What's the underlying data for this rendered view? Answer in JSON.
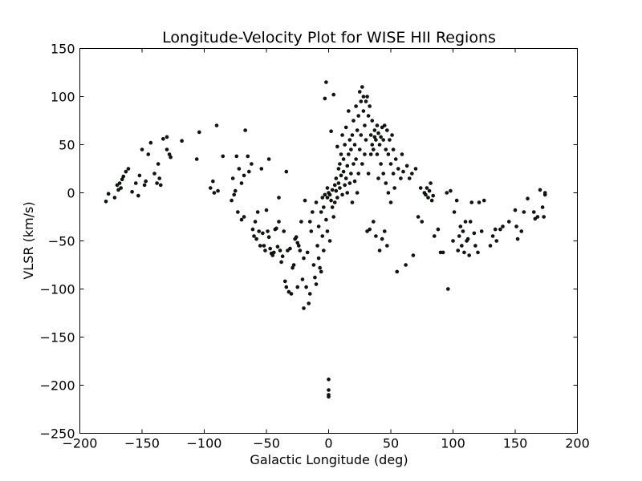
{
  "chart_data": {
    "type": "scatter",
    "title": "Longitude-Velocity Plot for WISE HII Regions",
    "xlabel": "Galactic Longitude (deg)",
    "ylabel": "VLSR (km/s)",
    "xlim": [
      -200,
      200
    ],
    "ylim": [
      -250,
      150
    ],
    "xticks": [
      -200,
      -150,
      -100,
      -50,
      0,
      50,
      100,
      150,
      200
    ],
    "yticks": [
      -250,
      -200,
      -150,
      -100,
      -50,
      0,
      50,
      100,
      150
    ],
    "xtick_labels": [
      "−200",
      "−150",
      "−100",
      "−50",
      "0",
      "50",
      "100",
      "150",
      "200"
    ],
    "ytick_labels": [
      "−250",
      "−200",
      "−150",
      "−100",
      "−50",
      "0",
      "50",
      "100",
      "150"
    ],
    "grid": false,
    "legend": "none",
    "marker_color": "#0f1a0f",
    "series": [
      {
        "points": [
          [
            -179,
            -9
          ],
          [
            -177,
            -1
          ],
          [
            -172,
            -5
          ],
          [
            -170,
            8
          ],
          [
            -169,
            3
          ],
          [
            -168,
            10
          ],
          [
            -167,
            5
          ],
          [
            -166,
            14
          ],
          [
            -165,
            17
          ],
          [
            -163,
            22
          ],
          [
            -161,
            25
          ],
          [
            -158,
            1
          ],
          [
            -155,
            10
          ],
          [
            -153,
            -3
          ],
          [
            -152,
            18
          ],
          [
            -150,
            45
          ],
          [
            -148,
            8
          ],
          [
            -147,
            12
          ],
          [
            -145,
            40
          ],
          [
            -143,
            52
          ],
          [
            -140,
            20
          ],
          [
            -138,
            10
          ],
          [
            -137,
            30
          ],
          [
            -136,
            15
          ],
          [
            -135,
            8
          ],
          [
            -133,
            56
          ],
          [
            -130,
            58
          ],
          [
            -130,
            45
          ],
          [
            -128,
            40
          ],
          [
            -127,
            37
          ],
          [
            -118,
            54
          ],
          [
            -106,
            35
          ],
          [
            -104,
            63
          ],
          [
            -95,
            5
          ],
          [
            -93,
            12
          ],
          [
            -92,
            0
          ],
          [
            -90,
            70
          ],
          [
            -89,
            2
          ],
          [
            -85,
            38
          ],
          [
            -78,
            -8
          ],
          [
            -77,
            15
          ],
          [
            -76,
            -2
          ],
          [
            -75,
            2
          ],
          [
            -74,
            38
          ],
          [
            -73,
            -20
          ],
          [
            -72,
            25
          ],
          [
            -70,
            -28
          ],
          [
            -70,
            10
          ],
          [
            -68,
            18
          ],
          [
            -68,
            -25
          ],
          [
            -67,
            65
          ],
          [
            -65,
            38
          ],
          [
            -64,
            22
          ],
          [
            -62,
            30
          ],
          [
            -61,
            -38
          ],
          [
            -60,
            -45
          ],
          [
            -59,
            -30
          ],
          [
            -58,
            -48
          ],
          [
            -57,
            -20
          ],
          [
            -56,
            -40
          ],
          [
            -55,
            -55
          ],
          [
            -54,
            25
          ],
          [
            -53,
            -42
          ],
          [
            -52,
            -55
          ],
          [
            -51,
            -60
          ],
          [
            -50,
            -18
          ],
          [
            -49,
            -40
          ],
          [
            -48,
            -46
          ],
          [
            -48,
            35
          ],
          [
            -47,
            -58
          ],
          [
            -46,
            -63
          ],
          [
            -45,
            -65
          ],
          [
            -44,
            -62
          ],
          [
            -43,
            -38
          ],
          [
            -42,
            -37
          ],
          [
            -41,
            -56
          ],
          [
            -40,
            -5
          ],
          [
            -40,
            -30
          ],
          [
            -39,
            -60
          ],
          [
            -38,
            -72
          ],
          [
            -37,
            -66
          ],
          [
            -36,
            -40
          ],
          [
            -35,
            -92
          ],
          [
            -34,
            -98
          ],
          [
            -34,
            22
          ],
          [
            -33,
            -60
          ],
          [
            -32,
            -103
          ],
          [
            -31,
            -58
          ],
          [
            -30,
            -105
          ],
          [
            -29,
            -78
          ],
          [
            -28,
            -75
          ],
          [
            -27,
            -48
          ],
          [
            -26,
            -46
          ],
          [
            -25,
            -52
          ],
          [
            -25,
            -98
          ],
          [
            -24,
            -55
          ],
          [
            -23,
            -60
          ],
          [
            -22,
            -30
          ],
          [
            -21,
            -90
          ],
          [
            -20,
            -68
          ],
          [
            -20,
            -120
          ],
          [
            -19,
            -8
          ],
          [
            -18,
            -98
          ],
          [
            -17,
            -62
          ],
          [
            -16,
            -115
          ],
          [
            -15,
            -30
          ],
          [
            -15,
            -105
          ],
          [
            -14,
            -40
          ],
          [
            -13,
            -20
          ],
          [
            -12,
            -75
          ],
          [
            -11,
            -88
          ],
          [
            -10,
            -95
          ],
          [
            -10,
            -10
          ],
          [
            -9,
            -55
          ],
          [
            -8,
            -68
          ],
          [
            -8,
            -35
          ],
          [
            -7,
            -78
          ],
          [
            -6,
            -82
          ],
          [
            -6,
            -20
          ],
          [
            -5,
            -5
          ],
          [
            -5,
            -45
          ],
          [
            -4,
            -15
          ],
          [
            -4,
            -60
          ],
          [
            -3,
            -2
          ],
          [
            -3,
            98
          ],
          [
            -2,
            -28
          ],
          [
            -2,
            115
          ],
          [
            -1,
            -5
          ],
          [
            -1,
            5
          ],
          [
            -1,
            -40
          ],
          [
            0,
            0
          ],
          [
            0,
            -210
          ],
          [
            0,
            -205
          ],
          [
            0,
            -212
          ],
          [
            0,
            -194
          ],
          [
            1,
            -2
          ],
          [
            1,
            -50
          ],
          [
            2,
            -8
          ],
          [
            2,
            64
          ],
          [
            3,
            3
          ],
          [
            3,
            -15
          ],
          [
            4,
            102
          ],
          [
            4,
            -25
          ],
          [
            5,
            8
          ],
          [
            5,
            -10
          ],
          [
            6,
            15
          ],
          [
            6,
            2
          ],
          [
            7,
            -5
          ],
          [
            7,
            48
          ],
          [
            8,
            25
          ],
          [
            8,
            10
          ],
          [
            9,
            30
          ],
          [
            9,
            5
          ],
          [
            10,
            18
          ],
          [
            10,
            40
          ],
          [
            11,
            60
          ],
          [
            11,
            -2
          ],
          [
            12,
            22
          ],
          [
            12,
            35
          ],
          [
            13,
            8
          ],
          [
            13,
            50
          ],
          [
            14,
            15
          ],
          [
            14,
            68
          ],
          [
            15,
            28
          ],
          [
            15,
            0
          ],
          [
            16,
            40
          ],
          [
            16,
            85
          ],
          [
            17,
            10
          ],
          [
            17,
            55
          ],
          [
            18,
            20
          ],
          [
            18,
            45
          ],
          [
            19,
            -10
          ],
          [
            19,
            60
          ],
          [
            20,
            30
          ],
          [
            20,
            75
          ],
          [
            21,
            12
          ],
          [
            21,
            50
          ],
          [
            22,
            90
          ],
          [
            22,
            35
          ],
          [
            23,
            65
          ],
          [
            23,
            0
          ],
          [
            24,
            80
          ],
          [
            24,
            20
          ],
          [
            25,
            105
          ],
          [
            25,
            45
          ],
          [
            26,
            95
          ],
          [
            26,
            60
          ],
          [
            27,
            110
          ],
          [
            27,
            30
          ],
          [
            28,
            85
          ],
          [
            28,
            100
          ],
          [
            29,
            70
          ],
          [
            29,
            40
          ],
          [
            30,
            95
          ],
          [
            30,
            55
          ],
          [
            31,
            100
          ],
          [
            31,
            -40
          ],
          [
            32,
            80
          ],
          [
            32,
            20
          ],
          [
            33,
            90
          ],
          [
            33,
            -38
          ],
          [
            34,
            60
          ],
          [
            34,
            40
          ],
          [
            35,
            75
          ],
          [
            35,
            50
          ],
          [
            36,
            45
          ],
          [
            36,
            -30
          ],
          [
            37,
            65
          ],
          [
            37,
            58
          ],
          [
            38,
            55
          ],
          [
            38,
            -45
          ],
          [
            39,
            40
          ],
          [
            39,
            70
          ],
          [
            40,
            62
          ],
          [
            40,
            15
          ],
          [
            41,
            50
          ],
          [
            41,
            -60
          ],
          [
            42,
            58
          ],
          [
            42,
            30
          ],
          [
            43,
            68
          ],
          [
            43,
            -48
          ],
          [
            44,
            55
          ],
          [
            44,
            20
          ],
          [
            45,
            70
          ],
          [
            45,
            -40
          ],
          [
            46,
            45
          ],
          [
            46,
            10
          ],
          [
            47,
            65
          ],
          [
            47,
            -55
          ],
          [
            48,
            40
          ],
          [
            48,
            0
          ],
          [
            49,
            55
          ],
          [
            50,
            30
          ],
          [
            50,
            -10
          ],
          [
            51,
            60
          ],
          [
            52,
            20
          ],
          [
            52,
            45
          ],
          [
            53,
            5
          ],
          [
            54,
            35
          ],
          [
            55,
            -82
          ],
          [
            56,
            25
          ],
          [
            58,
            15
          ],
          [
            59,
            40
          ],
          [
            60,
            22
          ],
          [
            62,
            -75
          ],
          [
            63,
            28
          ],
          [
            65,
            15
          ],
          [
            67,
            20
          ],
          [
            68,
            -65
          ],
          [
            70,
            25
          ],
          [
            72,
            -25
          ],
          [
            74,
            5
          ],
          [
            75,
            -30
          ],
          [
            77,
            0
          ],
          [
            78,
            -2
          ],
          [
            79,
            5
          ],
          [
            80,
            -5
          ],
          [
            81,
            2
          ],
          [
            82,
            10
          ],
          [
            83,
            -8
          ],
          [
            84,
            -3
          ],
          [
            85,
            -45
          ],
          [
            88,
            -38
          ],
          [
            90,
            -62
          ],
          [
            92,
            -62
          ],
          [
            95,
            0
          ],
          [
            96,
            -100
          ],
          [
            98,
            2
          ],
          [
            100,
            -50
          ],
          [
            101,
            -20
          ],
          [
            103,
            -8
          ],
          [
            104,
            -60
          ],
          [
            105,
            -45
          ],
          [
            106,
            -35
          ],
          [
            107,
            -55
          ],
          [
            108,
            -40
          ],
          [
            109,
            -62
          ],
          [
            110,
            -30
          ],
          [
            111,
            -50
          ],
          [
            112,
            -48
          ],
          [
            113,
            -65
          ],
          [
            114,
            -30
          ],
          [
            115,
            -10
          ],
          [
            117,
            -42
          ],
          [
            118,
            -55
          ],
          [
            120,
            -62
          ],
          [
            121,
            -10
          ],
          [
            123,
            -40
          ],
          [
            125,
            -8
          ],
          [
            130,
            -55
          ],
          [
            132,
            -45
          ],
          [
            134,
            -38
          ],
          [
            135,
            -50
          ],
          [
            138,
            -38
          ],
          [
            140,
            -35
          ],
          [
            145,
            -30
          ],
          [
            150,
            -18
          ],
          [
            151,
            -35
          ],
          [
            152,
            -48
          ],
          [
            155,
            -40
          ],
          [
            157,
            -20
          ],
          [
            160,
            -6
          ],
          [
            165,
            -20
          ],
          [
            166,
            -27
          ],
          [
            168,
            -25
          ],
          [
            170,
            3
          ],
          [
            172,
            -15
          ],
          [
            173,
            -25
          ],
          [
            174,
            -2
          ],
          [
            174,
            0
          ]
        ]
      }
    ]
  }
}
